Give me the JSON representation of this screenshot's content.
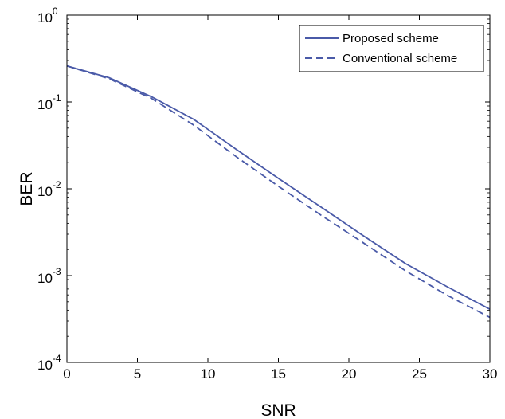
{
  "chart_data": {
    "type": "line",
    "title": "",
    "xlabel": "SNR",
    "ylabel": "BER",
    "xlim": [
      0,
      30
    ],
    "ylim": [
      0.0001,
      1
    ],
    "yscale": "log",
    "grid": false,
    "legend_position": "top-right",
    "x_ticks": [
      {
        "value": 0,
        "label": "0"
      },
      {
        "value": 5,
        "label": "5"
      },
      {
        "value": 10,
        "label": "10"
      },
      {
        "value": 15,
        "label": "15"
      },
      {
        "value": 20,
        "label": "20"
      },
      {
        "value": 25,
        "label": "25"
      },
      {
        "value": 30,
        "label": "30"
      }
    ],
    "y_ticks": [
      {
        "value": 1,
        "base": "10",
        "exp": "0"
      },
      {
        "value": 0.1,
        "base": "10",
        "exp": "-1"
      },
      {
        "value": 0.01,
        "base": "10",
        "exp": "-2"
      },
      {
        "value": 0.001,
        "base": "10",
        "exp": "-3"
      },
      {
        "value": 0.0001,
        "base": "10",
        "exp": "-4"
      }
    ],
    "x": [
      0,
      3,
      6,
      9,
      12,
      15,
      18,
      21,
      24,
      27,
      30
    ],
    "series": [
      {
        "name": "Proposed scheme",
        "style": "solid",
        "color": "#4a5aa8",
        "values": [
          0.26,
          0.19,
          0.115,
          0.063,
          0.0285,
          0.0132,
          0.0062,
          0.0029,
          0.00138,
          0.00074,
          0.00041
        ]
      },
      {
        "name": "Conventional scheme",
        "style": "dashed",
        "color": "#4a5aa8",
        "values": [
          0.26,
          0.185,
          0.11,
          0.054,
          0.0235,
          0.0107,
          0.005,
          0.0024,
          0.00114,
          0.00059,
          0.00033
        ]
      }
    ]
  }
}
